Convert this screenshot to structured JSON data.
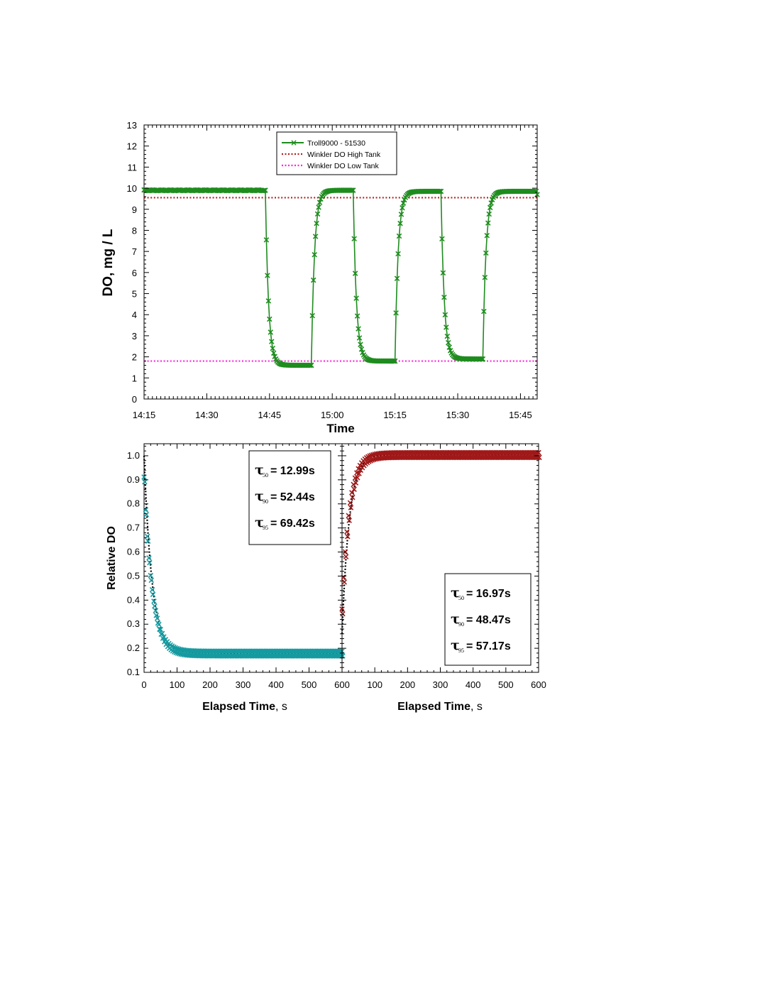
{
  "chart_data": [
    {
      "id": "do_timeseries",
      "type": "line",
      "xlabel": "Time",
      "ylabel": "DO, mg / L",
      "x_range_minutes": [
        855,
        949
      ],
      "x_ticks": [
        "14:15",
        "14:30",
        "14:45",
        "15:00",
        "15:15",
        "15:30",
        "15:45"
      ],
      "ylim": [
        0,
        13
      ],
      "y_ticks": [
        "0",
        "1",
        "2",
        "3",
        "4",
        "5",
        "6",
        "7",
        "8",
        "9",
        "10",
        "11",
        "12",
        "13"
      ],
      "grid": false,
      "legend_placement": "top-center",
      "series": [
        {
          "name": "Troll9000 - 51530",
          "color": "#1e8c1e",
          "marker": "x",
          "high": 9.9,
          "transitions": [
            {
              "drop_start": "14:44",
              "low": 1.6,
              "rise_start": "14:55",
              "high": 9.9
            },
            {
              "drop_start": "15:05",
              "low": 1.8,
              "rise_start": "15:15",
              "high": 9.85
            },
            {
              "drop_start": "15:26",
              "low": 1.9,
              "rise_start": "15:36",
              "high": 9.85
            }
          ],
          "end_value": 9.7
        },
        {
          "name": "Winkler DO High Tank",
          "color": "#b02020",
          "style": "dotted",
          "value": 9.55
        },
        {
          "name": "Winkler DO Low Tank",
          "color": "#ff22dd",
          "style": "dotted",
          "value": 1.8
        }
      ]
    },
    {
      "id": "relative_do_decay",
      "type": "scatter",
      "xlabel": "Elapsed Time",
      "xlabel_unit": ", s",
      "ylabel": "Relative DO",
      "xlim": [
        0,
        600
      ],
      "x_ticks": [
        "0",
        "100",
        "200",
        "300",
        "400",
        "500",
        "600"
      ],
      "ylim": [
        0.1,
        1.05
      ],
      "y_ticks": [
        "0.1",
        "0.2",
        "0.3",
        "0.4",
        "0.5",
        "0.6",
        "0.7",
        "0.8",
        "0.9",
        "1.0"
      ],
      "marker_color": "#159aa0",
      "fit_color": "#000000",
      "curve": {
        "start": 1.0,
        "final": 0.18,
        "time_constant_s": 24
      },
      "annotations": [
        {
          "tau": "τ",
          "sub": "50",
          "text": "= 12.99s"
        },
        {
          "tau": "τ",
          "sub": "90",
          "text": "= 52.44s"
        },
        {
          "tau": "τ",
          "sub": "95",
          "text": "= 69.42s"
        }
      ]
    },
    {
      "id": "relative_do_rise",
      "type": "scatter",
      "xlabel": "Elapsed Time",
      "xlabel_unit": ", s",
      "xlim": [
        0,
        600
      ],
      "x_ticks": [
        "100",
        "200",
        "300",
        "400",
        "500",
        "600"
      ],
      "ylim": [
        0.1,
        1.05
      ],
      "marker_color": "#a01818",
      "fit_color": "#000000",
      "curve": {
        "start": 0.26,
        "final": 1.005,
        "time_constant_s": 22
      },
      "annotations": [
        {
          "tau": "τ",
          "sub": "50",
          "text": "=  16.97s"
        },
        {
          "tau": "τ",
          "sub": "90",
          "text": "=  48.47s"
        },
        {
          "tau": "τ",
          "sub": "95",
          "text": "=  57.17s"
        }
      ]
    }
  ]
}
